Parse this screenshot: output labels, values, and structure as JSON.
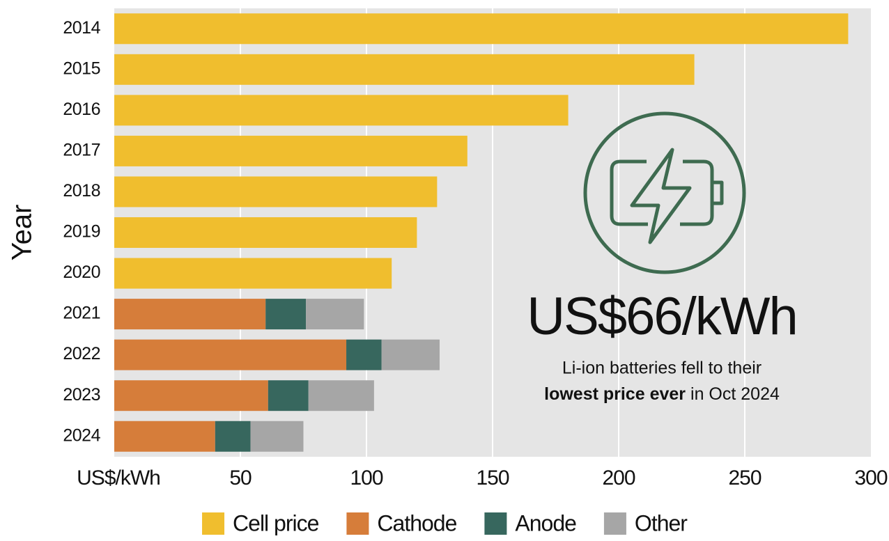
{
  "chart_data": {
    "type": "stacked_barh",
    "categories": [
      "2014",
      "2015",
      "2016",
      "2017",
      "2018",
      "2019",
      "2020",
      "2021",
      "2022",
      "2023",
      "2024"
    ],
    "series": [
      {
        "name": "Cell price",
        "color": "#f0be2e",
        "values": [
          291,
          230,
          180,
          140,
          128,
          120,
          110,
          null,
          null,
          null,
          null
        ]
      },
      {
        "name": "Cathode",
        "color": "#d67d3a",
        "values": [
          null,
          null,
          null,
          null,
          null,
          null,
          null,
          60,
          92,
          61,
          40
        ]
      },
      {
        "name": "Anode",
        "color": "#37675e",
        "values": [
          null,
          null,
          null,
          null,
          null,
          null,
          null,
          16,
          14,
          16,
          14
        ]
      },
      {
        "name": "Other",
        "color": "#a6a6a6",
        "values": [
          null,
          null,
          null,
          null,
          null,
          null,
          null,
          23,
          23,
          26,
          21
        ]
      }
    ],
    "xlim": [
      0,
      300
    ],
    "xticks": [
      {
        "value": 0,
        "label": "US$/kWh"
      },
      50,
      100,
      150,
      200,
      250,
      300
    ],
    "ylabel": "Year",
    "grid": true,
    "legend": "bottom",
    "annotation": {
      "headline": "US$66/kWh",
      "line1": "Li-ion batteries fell to their",
      "line2_bold": "lowest price ever",
      "line2_rest": "in Oct 2024"
    }
  }
}
